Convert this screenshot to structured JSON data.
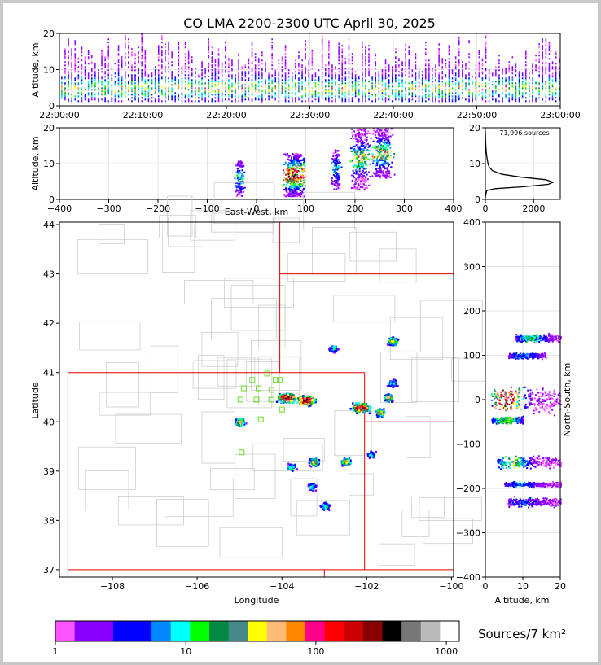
{
  "title": "CO LMA 2200-2300 UTC April 30, 2025",
  "colorbar": {
    "label": "Sources/7 km²",
    "tick_labels": [
      "1",
      "10",
      "100",
      "1000"
    ],
    "colors": [
      "#ff55ff",
      "#8800ff",
      "#8800ff",
      "#0000ff",
      "#0000ff",
      "#0088ff",
      "#00ffff",
      "#00ff00",
      "#008844",
      "#448888",
      "#ffff00",
      "#ffbb77",
      "#ff8800",
      "#ff0088",
      "#ff0000",
      "#cc0000",
      "#880000",
      "#000000",
      "#777777",
      "#bbbbbb",
      "#ffffff"
    ]
  },
  "chart_data": [
    {
      "id": "time_altitude",
      "type": "heatmap",
      "ylabel": "Altitude, km",
      "xlim": [
        "22:00:00",
        "23:00:00"
      ],
      "ylim": [
        0,
        20
      ],
      "x_ticks": [
        "22:00:00",
        "22:10:00",
        "22:20:00",
        "22:30:00",
        "22:40:00",
        "22:50:00",
        "23:00:00"
      ],
      "y_ticks": [
        "0",
        "10",
        "20"
      ],
      "density_peak_altitude_km": 5
    },
    {
      "id": "ew_altitude",
      "type": "heatmap",
      "xlabel": "East-West, km",
      "ylabel": "Altitude, km",
      "xlim": [
        -400,
        400
      ],
      "ylim": [
        0,
        20
      ],
      "x_ticks": [
        "−400",
        "−300",
        "−200",
        "−100",
        "0",
        "100",
        "200",
        "300",
        "400"
      ],
      "y_ticks": [
        "0",
        "10",
        "20"
      ],
      "clusters": [
        {
          "x_km": -35,
          "alt_km": [
            1,
            11
          ],
          "density": "low"
        },
        {
          "x_km": 75,
          "alt_km": [
            1,
            13
          ],
          "density": "high"
        },
        {
          "x_km": 160,
          "alt_km": [
            3,
            14
          ],
          "density": "low"
        },
        {
          "x_km": 210,
          "alt_km": [
            3,
            20
          ],
          "density": "medium"
        },
        {
          "x_km": 255,
          "alt_km": [
            6,
            20
          ],
          "density": "medium"
        }
      ]
    },
    {
      "id": "altitude_histogram",
      "type": "line",
      "annotation": "71,996 sources",
      "xlim": [
        0,
        3100
      ],
      "ylim": [
        0,
        20
      ],
      "x_ticks": [
        "0",
        "2000"
      ],
      "y_ticks": [
        "0",
        "10",
        "20"
      ],
      "points": [
        [
          0,
          0.5
        ],
        [
          20,
          1.5
        ],
        [
          60,
          2.5
        ],
        [
          400,
          3
        ],
        [
          1500,
          3.5
        ],
        [
          2600,
          4.2
        ],
        [
          2800,
          4.8
        ],
        [
          2500,
          5.5
        ],
        [
          1500,
          6.2
        ],
        [
          700,
          7
        ],
        [
          300,
          8
        ],
        [
          160,
          9
        ],
        [
          110,
          10
        ],
        [
          80,
          11
        ],
        [
          60,
          12
        ],
        [
          40,
          13
        ],
        [
          30,
          14
        ],
        [
          20,
          15
        ],
        [
          12,
          16
        ],
        [
          6,
          17
        ],
        [
          2,
          18
        ],
        [
          0,
          19
        ]
      ]
    },
    {
      "id": "plan_view",
      "type": "heatmap",
      "xlabel": "Longitude",
      "ylabel": "Latitude",
      "xlim": [
        -109.25,
        -99.95
      ],
      "ylim": [
        36.85,
        44.05
      ],
      "x_ticks": [
        "−108",
        "−106",
        "−104",
        "−102",
        "−100"
      ],
      "y_ticks": [
        "37",
        "38",
        "39",
        "40",
        "41",
        "42",
        "43",
        "44"
      ],
      "clusters": [
        {
          "lon": -105.0,
          "lat": 40.0,
          "density": "medium"
        },
        {
          "lon": -103.9,
          "lat": 40.5,
          "density": "high"
        },
        {
          "lon": -103.45,
          "lat": 40.45,
          "density": "high"
        },
        {
          "lon": -102.15,
          "lat": 40.3,
          "density": "high"
        },
        {
          "lon": -101.7,
          "lat": 40.2,
          "density": "medium"
        },
        {
          "lon": -101.5,
          "lat": 40.5,
          "density": "medium"
        },
        {
          "lon": -101.4,
          "lat": 40.8,
          "density": "low"
        },
        {
          "lon": -101.4,
          "lat": 41.65,
          "density": "medium"
        },
        {
          "lon": -102.8,
          "lat": 41.5,
          "density": "low"
        },
        {
          "lon": -103.25,
          "lat": 39.2,
          "density": "medium"
        },
        {
          "lon": -103.3,
          "lat": 38.7,
          "density": "low"
        },
        {
          "lon": -102.5,
          "lat": 39.2,
          "density": "medium"
        },
        {
          "lon": -103.0,
          "lat": 38.3,
          "density": "low"
        },
        {
          "lon": -101.9,
          "lat": 39.35,
          "density": "low"
        },
        {
          "lon": -103.8,
          "lat": 39.1,
          "density": "low"
        }
      ],
      "stations": [
        [
          -104.35,
          40.98
        ],
        [
          -104.15,
          40.85
        ],
        [
          -104.7,
          40.85
        ],
        [
          -104.05,
          40.85
        ],
        [
          -104.9,
          40.68
        ],
        [
          -104.55,
          40.68
        ],
        [
          -104.25,
          40.65
        ],
        [
          -104.98,
          40.45
        ],
        [
          -104.6,
          40.45
        ],
        [
          -104.25,
          40.45
        ],
        [
          -104.0,
          40.25
        ],
        [
          -104.5,
          40.05
        ],
        [
          -104.95,
          39.38
        ]
      ]
    },
    {
      "id": "altitude_ns",
      "type": "heatmap",
      "xlabel": "Altitude, km",
      "ylabel": "North-South, km",
      "xlim": [
        0,
        20
      ],
      "ylim": [
        -400,
        400
      ],
      "x_ticks": [
        "0",
        "10",
        "20"
      ],
      "y_ticks": [
        "−400",
        "−300",
        "−200",
        "−100",
        "0",
        "100",
        "200",
        "300",
        "400"
      ]
    }
  ]
}
